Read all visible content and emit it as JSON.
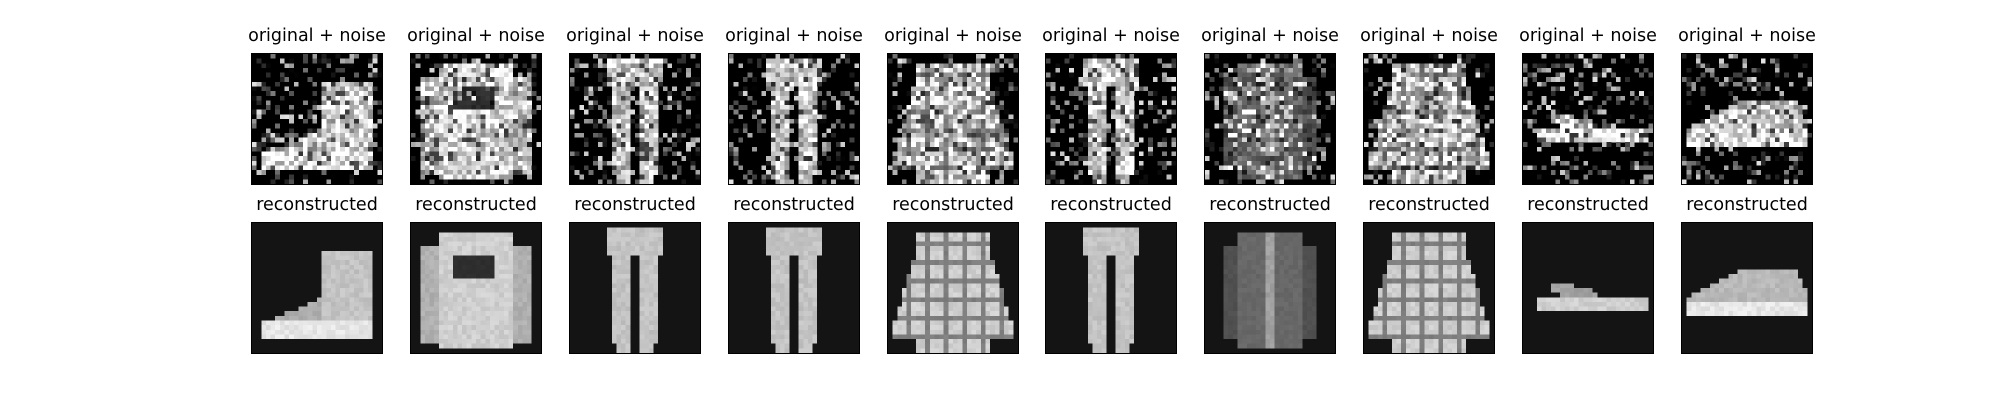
{
  "chart_data": {
    "type": "image-grid",
    "rows": [
      {
        "name": "noisy",
        "titles": [
          "original + noise",
          "original + noise",
          "original + noise",
          "original + noise",
          "original + noise",
          "original + noise",
          "original + noise",
          "original + noise",
          "original + noise",
          "original + noise"
        ]
      },
      {
        "name": "reconstructed",
        "titles": [
          "reconstructed",
          "reconstructed",
          "reconstructed",
          "reconstructed",
          "reconstructed",
          "reconstructed",
          "reconstructed",
          "reconstructed",
          "reconstructed",
          "reconstructed"
        ]
      }
    ],
    "items": [
      "ankle-boot",
      "pullover",
      "trouser",
      "trouser",
      "shirt",
      "trouser",
      "coat",
      "shirt",
      "sandal",
      "sneaker"
    ],
    "colormap": "gray",
    "grid": false
  }
}
